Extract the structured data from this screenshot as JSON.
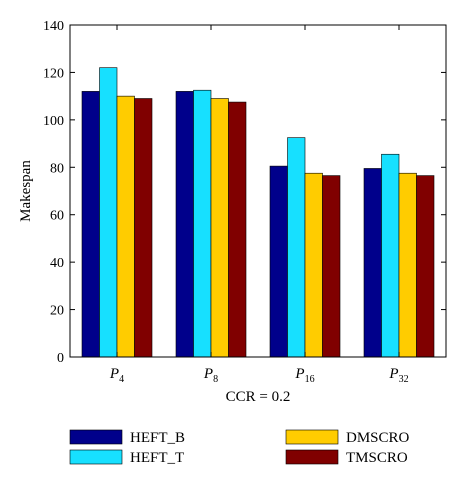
{
  "chart_data": {
    "type": "bar",
    "xlabel": "CCR = 0.2",
    "ylabel": "Makespan",
    "ylim": [
      0,
      140
    ],
    "yticks": [
      0,
      20,
      40,
      60,
      80,
      100,
      120,
      140
    ],
    "categories": [
      {
        "base": "P",
        "sub": "4"
      },
      {
        "base": "P",
        "sub": "8"
      },
      {
        "base": "P",
        "sub": "16"
      },
      {
        "base": "P",
        "sub": "32"
      }
    ],
    "series": [
      {
        "name": "HEFT_B",
        "color": "#00008b",
        "values": [
          112,
          112,
          80.5,
          79.5
        ]
      },
      {
        "name": "HEFT_T",
        "color": "#17e0ff",
        "values": [
          122,
          112.5,
          92.5,
          85.5
        ]
      },
      {
        "name": "DMSCRO",
        "color": "#ffcc00",
        "values": [
          110,
          109,
          77.5,
          77.5
        ]
      },
      {
        "name": "TMSCRO",
        "color": "#800000",
        "values": [
          109,
          107.5,
          76.5,
          76.5
        ]
      }
    ],
    "grid": false,
    "legend_position": "bottom"
  }
}
